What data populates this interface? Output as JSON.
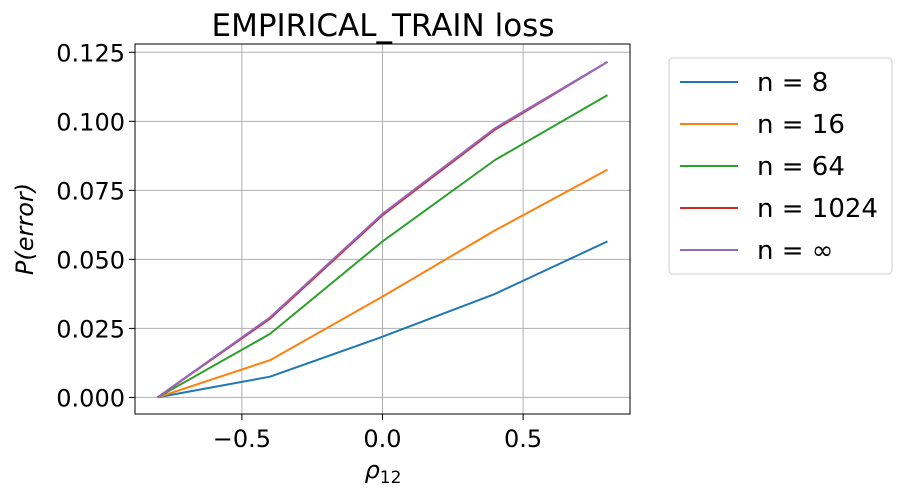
{
  "chart_data": {
    "type": "line",
    "title": "EMPIRICAL_TRAIN loss",
    "xlabel": "ρ",
    "xlabel_sub": "12",
    "ylabel": "P(error)",
    "x": [
      -0.8,
      -0.4,
      0.0,
      0.4,
      0.8
    ],
    "xlim": [
      -0.88,
      0.88
    ],
    "ylim": [
      -0.006,
      0.128
    ],
    "xticks": [
      -0.5,
      0.0,
      0.5
    ],
    "xtick_labels": [
      "−0.5",
      "0.0",
      "0.5"
    ],
    "yticks": [
      0.0,
      0.025,
      0.05,
      0.075,
      0.1,
      0.125
    ],
    "ytick_labels": [
      "0.000",
      "0.025",
      "0.050",
      "0.075",
      "0.100",
      "0.125"
    ],
    "grid": true,
    "legend_position": "outside-right",
    "series": [
      {
        "name": "n = 8",
        "color": "#1f77b4",
        "values": [
          0.0,
          0.0075,
          0.022,
          0.0375,
          0.0565
        ]
      },
      {
        "name": "n = 16",
        "color": "#ff7f0e",
        "values": [
          0.0,
          0.0135,
          0.0365,
          0.0605,
          0.0825
        ]
      },
      {
        "name": "n = 64",
        "color": "#2ca02c",
        "values": [
          0.0,
          0.023,
          0.0565,
          0.086,
          0.1095
        ]
      },
      {
        "name": "n = 1024",
        "color": "#d62728",
        "values": [
          0.0,
          0.0285,
          0.066,
          0.097,
          0.1215
        ]
      },
      {
        "name": "n = ∞",
        "color": "#9467bd",
        "values": [
          0.0,
          0.029,
          0.0665,
          0.0975,
          0.1215
        ]
      }
    ]
  }
}
